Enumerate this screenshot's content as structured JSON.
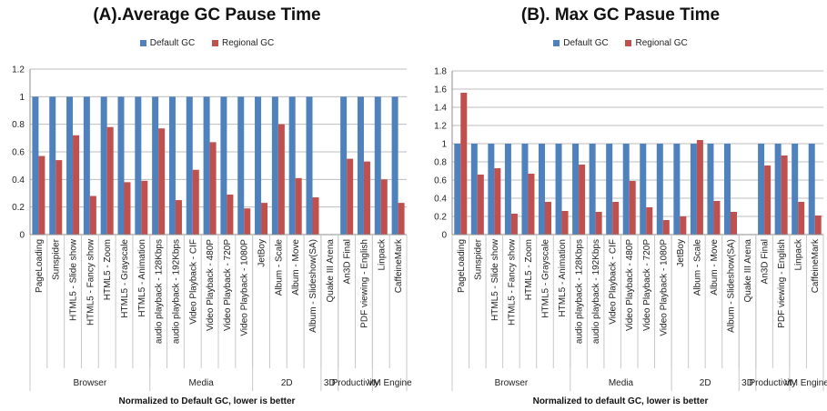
{
  "chart_data": [
    {
      "type": "bar",
      "title": "(A).Average GC Pause Time",
      "caption": "Normalized to Default GC, lower is better",
      "ylim": [
        0,
        1.2
      ],
      "yticks": [
        0,
        0.2,
        0.4,
        0.6,
        0.8,
        1,
        1.2
      ],
      "ytick_labels": [
        "0",
        "0.2",
        "0.4",
        "0.6",
        "0.8",
        "1",
        "1.2"
      ],
      "grid": true,
      "legend_position": "top-center",
      "colors": {
        "Default GC": "#4F81BD",
        "Regional GC": "#C0504D"
      },
      "categories": [
        "PageLoading",
        "Sunspider",
        "HTML5 - Slide show",
        "HTML5 - Fancy show",
        "HTML5 - Zoom",
        "HTML5 - Grayscale",
        "HTML5 - Animation",
        "audio playback - 128Kbps",
        "audio playback - 192Kbps",
        "Video Playback - CIF",
        "Video Playback - 480P",
        "Video Playback - 720P",
        "Video Playback - 1080P",
        "JetBoy",
        "Album - Scale",
        "Album - Move",
        "Album - Slideshow(SA)",
        "Quake III Arena",
        "An3D Final",
        "PDF viewing - English",
        "Linpack",
        "CaffeineMark"
      ],
      "groups": [
        {
          "name": "Browser",
          "count": 7
        },
        {
          "name": "Media",
          "count": 6
        },
        {
          "name": "2D",
          "count": 4
        },
        {
          "name": "3D",
          "count": 1
        },
        {
          "name": "Productivity",
          "count": 2
        },
        {
          "name": "VM Engine",
          "count": 2
        }
      ],
      "series": [
        {
          "name": "Default GC",
          "values": [
            1,
            1,
            1,
            1,
            1,
            1,
            1,
            1,
            1,
            1,
            1,
            1,
            1,
            1,
            1,
            1,
            1,
            0,
            1,
            1,
            1,
            1
          ]
        },
        {
          "name": "Regional GC",
          "values": [
            0.57,
            0.54,
            0.72,
            0.28,
            0.78,
            0.38,
            0.39,
            0.77,
            0.25,
            0.47,
            0.67,
            0.29,
            0.19,
            0.23,
            0.8,
            0.41,
            0.27,
            0,
            0.55,
            0.53,
            0.4,
            0.23
          ]
        }
      ]
    },
    {
      "type": "bar",
      "title": "(B). Max GC Pasue Time",
      "caption": "Normalized to default GC, lower is better",
      "ylim": [
        0,
        1.8
      ],
      "yticks": [
        0,
        0.2,
        0.4,
        0.6,
        0.8,
        1,
        1.2,
        1.4,
        1.6,
        1.8
      ],
      "ytick_labels": [
        "0",
        "0.2",
        "0.4",
        "0.6",
        "0.8",
        "1",
        "1.2",
        "1.4",
        "1.6",
        "1.8"
      ],
      "grid": true,
      "legend_position": "top-center",
      "colors": {
        "Default GC": "#4F81BD",
        "Regional GC": "#C0504D"
      },
      "categories": [
        "PageLoading",
        "Sunspider",
        "HTML5 - Slide show",
        "HTML5 - Fancy show",
        "HTML5 - Zoom",
        "HTML5 - Grayscale",
        "HTML5 - Animation",
        "audio playback - 128Kbps",
        "audio playback - 192Kbps",
        "Video Playback - CIF",
        "Video Playback - 480P",
        "Video Playback - 720P",
        "Video Playback - 1080P",
        "JetBoy",
        "Album - Scale",
        "Album - Move",
        "Album - Slideshow(SA)",
        "Quake III Arena",
        "An3D Final",
        "PDF viewing - English",
        "Linpack",
        "CaffeineMark"
      ],
      "groups": [
        {
          "name": "Browser",
          "count": 7
        },
        {
          "name": "Media",
          "count": 6
        },
        {
          "name": "2D",
          "count": 4
        },
        {
          "name": "3D",
          "count": 1
        },
        {
          "name": "Productivity",
          "count": 2
        },
        {
          "name": "VM Engine",
          "count": 2
        }
      ],
      "series": [
        {
          "name": "Default GC",
          "values": [
            1,
            1,
            1,
            1,
            1,
            1,
            1,
            1,
            1,
            1,
            1,
            1,
            1,
            1,
            1,
            1,
            1,
            0,
            1,
            1,
            1,
            1
          ]
        },
        {
          "name": "Regional GC",
          "values": [
            1.56,
            0.66,
            0.73,
            0.23,
            0.67,
            0.36,
            0.26,
            0.77,
            0.25,
            0.36,
            0.59,
            0.3,
            0.16,
            0.2,
            1.04,
            0.37,
            0.25,
            0,
            0.76,
            0.87,
            0.36,
            0.21
          ]
        }
      ]
    }
  ]
}
